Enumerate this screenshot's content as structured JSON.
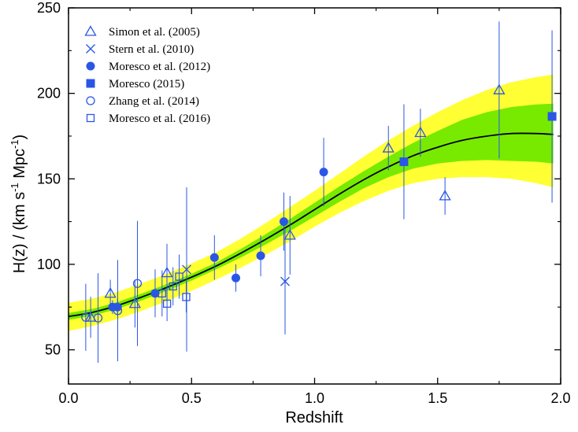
{
  "chart_data": {
    "type": "scatter",
    "xlabel": "Redshift",
    "ylabel_parts": [
      "H(z) / (km s",
      "-1",
      " Mpc",
      "-1",
      ")"
    ],
    "xlim": [
      0.0,
      2.0
    ],
    "ylim": [
      30,
      250
    ],
    "xticks": [
      0.0,
      0.5,
      1.0,
      1.5,
      2.0
    ],
    "xtick_labels": [
      "0.0",
      "0.5",
      "1.0",
      "1.5",
      "2.0"
    ],
    "yticks": [
      50,
      100,
      150,
      200,
      250
    ],
    "ytick_labels": [
      "50",
      "100",
      "150",
      "200",
      "250"
    ],
    "legend_position": "top-left",
    "colors": {
      "marker": "#2a56e6",
      "fit_line": "#000000",
      "band_inner": "#78ea00",
      "band_outer": "#ffff33"
    },
    "model_curve": {
      "name": "best fit",
      "x": [
        0.0,
        0.1,
        0.2,
        0.3,
        0.4,
        0.5,
        0.6,
        0.7,
        0.8,
        0.9,
        1.0,
        1.1,
        1.2,
        1.3,
        1.4,
        1.5,
        1.6,
        1.7,
        1.8,
        1.9,
        1.97
      ],
      "y": [
        69.5,
        72,
        76,
        81,
        86.5,
        92.5,
        99,
        106.5,
        114.5,
        123,
        132,
        141,
        149.5,
        157,
        163.5,
        168.5,
        172.5,
        175,
        176.5,
        176.5,
        176
      ],
      "band_1sigma_lo": [
        67.5,
        70,
        74,
        79,
        84.5,
        90.5,
        97,
        104,
        111.5,
        119.5,
        128,
        136.5,
        144.5,
        151,
        156,
        159,
        160.5,
        161,
        160.5,
        160,
        159
      ],
      "band_1sigma_hi": [
        71.5,
        74,
        78,
        83,
        88.5,
        94.5,
        101,
        109,
        117.5,
        126.5,
        136,
        145.5,
        154.5,
        163,
        171,
        178,
        184.5,
        189,
        192,
        193.5,
        194
      ],
      "band_2sigma_lo": [
        61,
        64,
        68,
        73,
        78.5,
        84.5,
        91,
        98,
        105.5,
        113.5,
        122,
        130,
        137,
        143,
        147.5,
        150,
        151,
        151,
        150,
        147.5,
        145
      ],
      "band_2sigma_hi": [
        77.5,
        80,
        84,
        89,
        94.5,
        100.5,
        107,
        115,
        124,
        133.5,
        143,
        153,
        163,
        172.5,
        181,
        189,
        196,
        202,
        206.5,
        209.5,
        211
      ]
    },
    "series": [
      {
        "name": "Simon et al. (2005)",
        "marker": "triangle-open",
        "points": [
          {
            "x": 0.09,
            "y": 69,
            "err": 12
          },
          {
            "x": 0.17,
            "y": 83,
            "err": 8
          },
          {
            "x": 0.27,
            "y": 77,
            "err": 14
          },
          {
            "x": 0.4,
            "y": 95,
            "err": 17
          },
          {
            "x": 0.9,
            "y": 117,
            "err": 23
          },
          {
            "x": 1.3,
            "y": 168,
            "err": 13
          },
          {
            "x": 1.43,
            "y": 177,
            "err": 14
          },
          {
            "x": 1.53,
            "y": 140,
            "err": 11
          },
          {
            "x": 1.75,
            "y": 202,
            "err": 40
          }
        ]
      },
      {
        "name": "Stern et al. (2010)",
        "marker": "cross",
        "points": [
          {
            "x": 0.48,
            "y": 97,
            "err": 48
          },
          {
            "x": 0.88,
            "y": 90,
            "err": 31
          }
        ]
      },
      {
        "name": "Moresco et al. (2012)",
        "marker": "circle-filled",
        "points": [
          {
            "x": 0.179,
            "y": 75,
            "err": 4
          },
          {
            "x": 0.199,
            "y": 75,
            "err": 5
          },
          {
            "x": 0.352,
            "y": 83,
            "err": 14
          },
          {
            "x": 0.593,
            "y": 104,
            "err": 13
          },
          {
            "x": 0.68,
            "y": 92,
            "err": 8
          },
          {
            "x": 0.781,
            "y": 105,
            "err": 12
          },
          {
            "x": 0.875,
            "y": 125,
            "err": 17
          },
          {
            "x": 1.037,
            "y": 154,
            "err": 20
          }
        ]
      },
      {
        "name": "Moresco (2015)",
        "marker": "square-filled",
        "points": [
          {
            "x": 1.363,
            "y": 160,
            "err": 33.6
          },
          {
            "x": 1.965,
            "y": 186.5,
            "err": 50.4
          }
        ]
      },
      {
        "name": "Zhang et al. (2014)",
        "marker": "circle-open",
        "points": [
          {
            "x": 0.07,
            "y": 69,
            "err": 19.6
          },
          {
            "x": 0.12,
            "y": 68.6,
            "err": 26.2
          },
          {
            "x": 0.2,
            "y": 72.9,
            "err": 29.6
          },
          {
            "x": 0.28,
            "y": 88.8,
            "err": 36.6
          }
        ]
      },
      {
        "name": "Moresco et al. (2016)",
        "marker": "square-open",
        "points": [
          {
            "x": 0.3802,
            "y": 83,
            "err": 13.5
          },
          {
            "x": 0.4004,
            "y": 77,
            "err": 10.2
          },
          {
            "x": 0.4247,
            "y": 87.1,
            "err": 11.2
          },
          {
            "x": 0.4497,
            "y": 92.8,
            "err": 12.9
          },
          {
            "x": 0.4783,
            "y": 80.9,
            "err": 9
          }
        ]
      }
    ]
  }
}
